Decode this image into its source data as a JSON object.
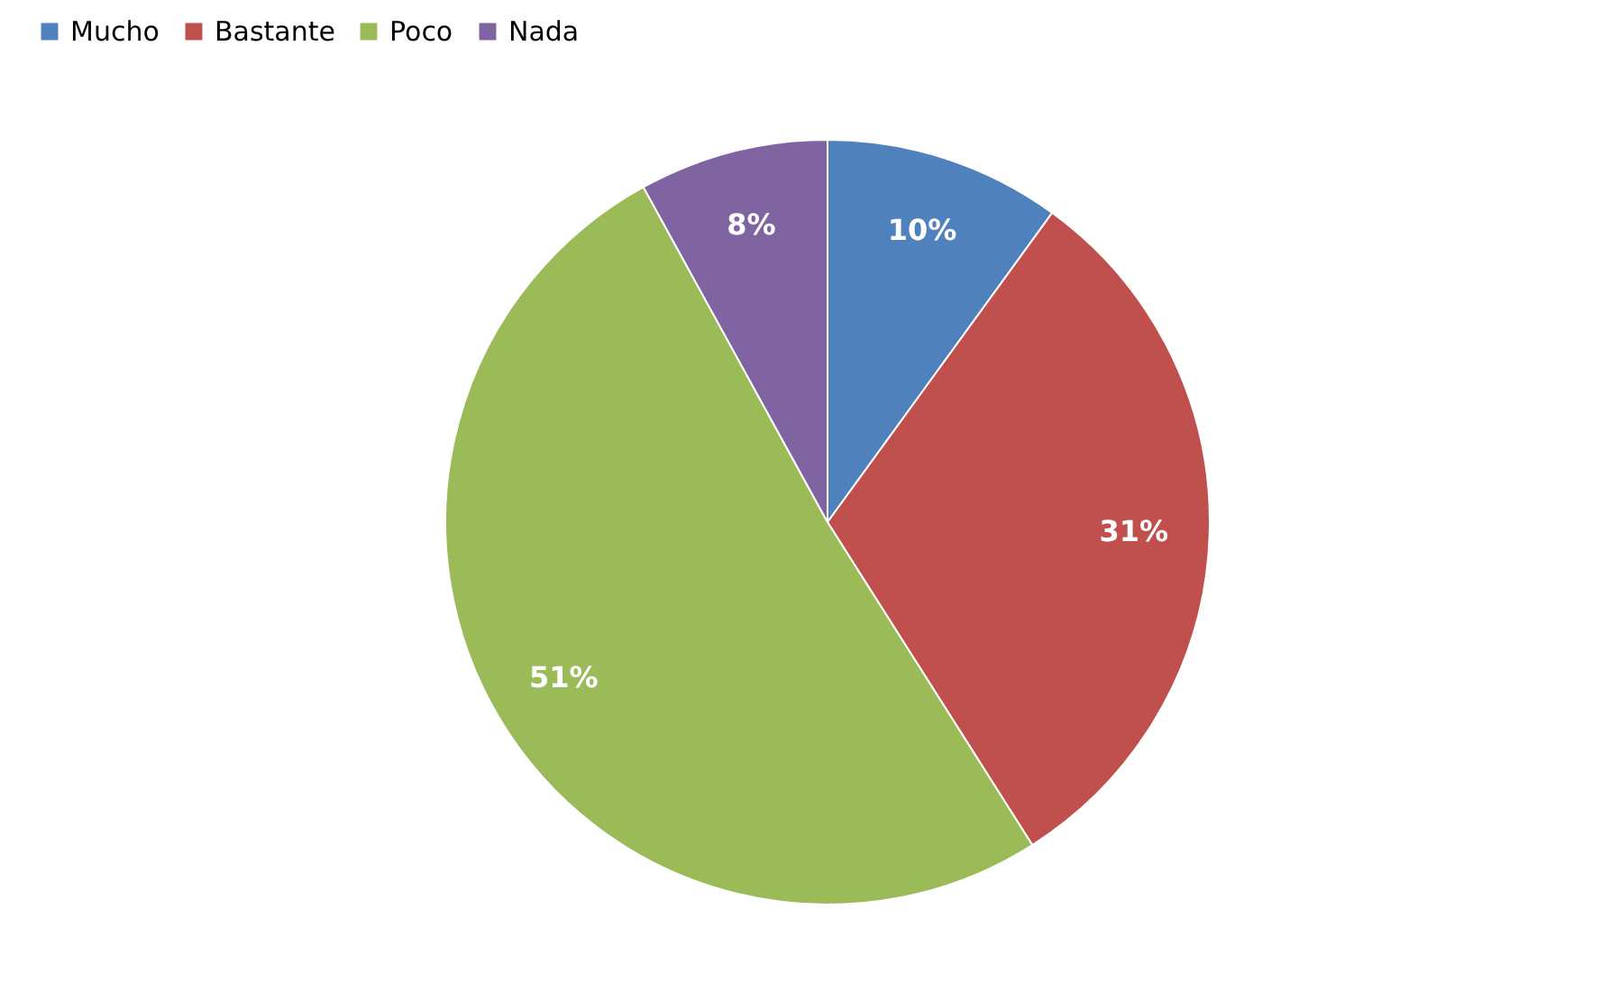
{
  "chart_data": {
    "type": "pie",
    "categories": [
      "Mucho",
      "Bastante",
      "Poco",
      "Nada"
    ],
    "values": [
      10,
      31,
      51,
      8
    ],
    "colors": [
      "#4f81bd",
      "#c0504d",
      "#9bbb59",
      "#8064a2"
    ],
    "value_labels": [
      "10%",
      "31%",
      "51%",
      "8%"
    ],
    "legend": "top"
  }
}
